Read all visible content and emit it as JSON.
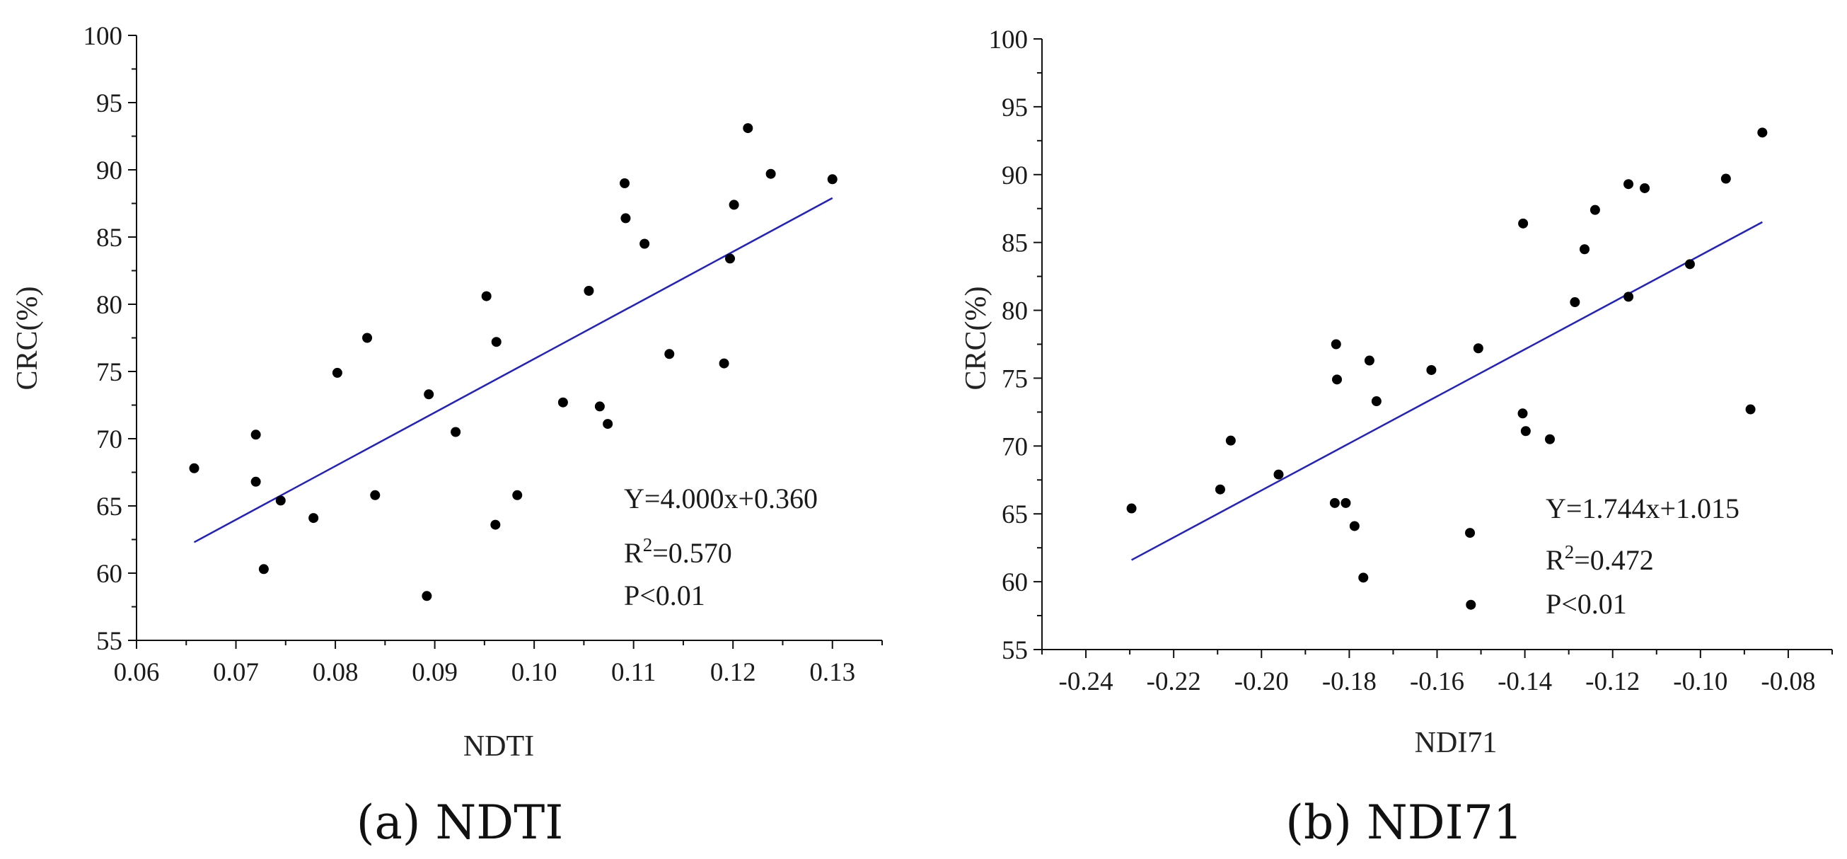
{
  "chart_data": [
    {
      "type": "scatter",
      "panel_id": "a",
      "caption": "(a) NDTI",
      "xlabel": "NDTI",
      "ylabel": "CRC(%)",
      "xlim": [
        0.06,
        0.135
      ],
      "ylim": [
        55,
        100
      ],
      "xticks": [
        0.06,
        0.07,
        0.08,
        0.09,
        0.1,
        0.11,
        0.12,
        0.13
      ],
      "xtick_labels": [
        "0.06",
        "0.07",
        "0.08",
        "0.09",
        "0.10",
        "0.11",
        "0.12",
        "0.13"
      ],
      "yticks": [
        55,
        60,
        65,
        70,
        75,
        80,
        85,
        90,
        95,
        100
      ],
      "ytick_labels": [
        "55",
        "60",
        "65",
        "70",
        "75",
        "80",
        "85",
        "90",
        "95",
        "100"
      ],
      "marker_color": "#000000",
      "fit_line_color": "#1f1fd1",
      "points": {
        "x": [
          0.0658,
          0.072,
          0.072,
          0.0728,
          0.0745,
          0.0778,
          0.0802,
          0.0832,
          0.084,
          0.0892,
          0.0894,
          0.0921,
          0.0952,
          0.0961,
          0.0962,
          0.0983,
          0.1029,
          0.1055,
          0.1066,
          0.1074,
          0.1091,
          0.1092,
          0.1111,
          0.1136,
          0.1191,
          0.1197,
          0.1201,
          0.1215,
          0.1238,
          0.13
        ],
        "y": [
          67.8,
          70.3,
          66.8,
          60.3,
          65.4,
          64.1,
          74.9,
          77.5,
          65.8,
          58.3,
          73.3,
          70.5,
          80.6,
          63.6,
          77.2,
          65.8,
          72.7,
          81.0,
          72.4,
          71.1,
          89.0,
          86.4,
          84.5,
          76.3,
          75.6,
          83.4,
          87.4,
          93.1,
          89.7,
          89.3
        ]
      },
      "fit_line": {
        "x": [
          0.0658,
          0.13
        ],
        "y": [
          62.3,
          87.9
        ]
      },
      "annotations": {
        "equation": "Y=4.000x+0.360",
        "r2_prefix": "R",
        "r2_sup": "2",
        "r2_value": "=0.570",
        "p_value": "P<0.01"
      }
    },
    {
      "type": "scatter",
      "panel_id": "b",
      "caption": "(b) NDI71",
      "xlabel": "NDI71",
      "ylabel": "CRC(%)",
      "xlim": [
        -0.25,
        -0.07
      ],
      "ylim": [
        55,
        100
      ],
      "xticks": [
        -0.24,
        -0.22,
        -0.2,
        -0.18,
        -0.16,
        -0.14,
        -0.12,
        -0.1,
        -0.08
      ],
      "xtick_labels": [
        "-0.24",
        "-0.22",
        "-0.20",
        "-0.18",
        "-0.16",
        "-0.14",
        "-0.12",
        "-0.10",
        "-0.08"
      ],
      "yticks": [
        55,
        60,
        65,
        70,
        75,
        80,
        85,
        90,
        95,
        100
      ],
      "ytick_labels": [
        "55",
        "60",
        "65",
        "70",
        "75",
        "80",
        "85",
        "90",
        "95",
        "100"
      ],
      "marker_color": "#000000",
      "fit_line_color": "#1f1fd1",
      "points": {
        "x": [
          -0.2296,
          -0.2094,
          -0.207,
          -0.1961,
          -0.1833,
          -0.183,
          -0.1828,
          -0.1808,
          -0.1788,
          -0.1768,
          -0.1754,
          -0.1738,
          -0.1613,
          -0.1525,
          -0.1523,
          -0.1506,
          -0.1404,
          -0.1405,
          -0.1398,
          -0.1343,
          -0.1286,
          -0.1264,
          -0.124,
          -0.1164,
          -0.1164,
          -0.1127,
          -0.1024,
          -0.0942,
          -0.0886,
          -0.0859
        ],
        "y": [
          65.4,
          66.8,
          70.4,
          67.9,
          65.8,
          77.5,
          74.9,
          65.8,
          64.1,
          60.3,
          76.3,
          73.3,
          75.6,
          63.6,
          58.3,
          77.2,
          86.4,
          72.4,
          71.1,
          70.5,
          80.6,
          84.5,
          87.4,
          89.3,
          81.0,
          89.0,
          83.4,
          89.7,
          72.7,
          93.1
        ]
      },
      "fit_line": {
        "x": [
          -0.2296,
          -0.0859
        ],
        "y": [
          61.6,
          86.5
        ]
      },
      "annotations": {
        "equation": "Y=1.744x+1.015",
        "r2_prefix": "R",
        "r2_sup": "2",
        "r2_value": "=0.472",
        "p_value": "P<0.01"
      }
    }
  ]
}
